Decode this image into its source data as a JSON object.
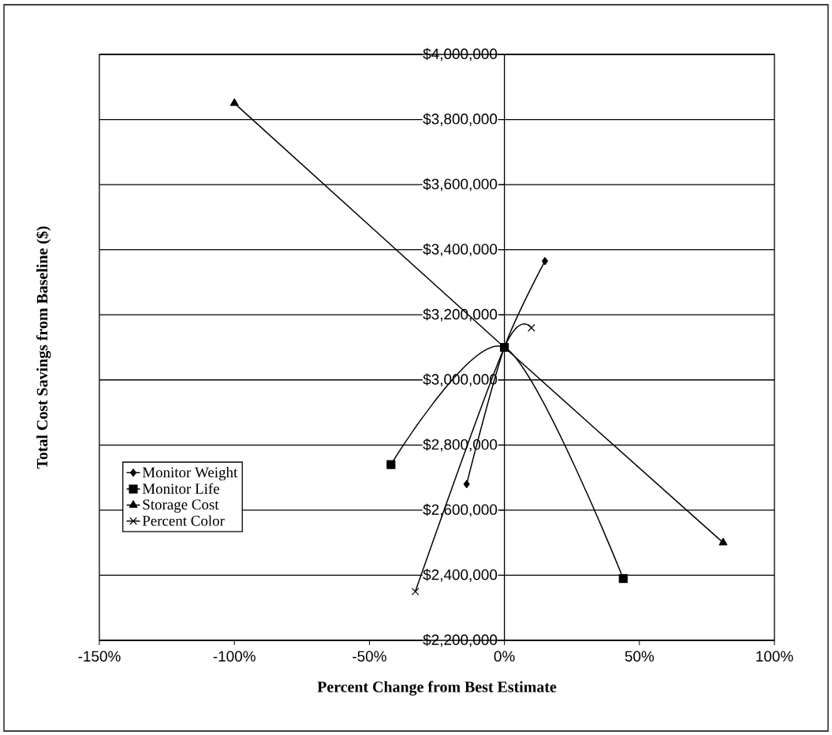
{
  "chart_data": {
    "type": "line",
    "xlabel": "Percent Change from Best Estimate",
    "ylabel": "Total Cost Savings from Baseline ($)",
    "xlim": [
      -150,
      100
    ],
    "ylim": [
      2200000,
      4000000
    ],
    "xticks": [
      {
        "value": -150,
        "label": "-150%"
      },
      {
        "value": -100,
        "label": "-100%"
      },
      {
        "value": -50,
        "label": "-50%"
      },
      {
        "value": 0,
        "label": "0%"
      },
      {
        "value": 50,
        "label": "50%"
      },
      {
        "value": 100,
        "label": "100%"
      }
    ],
    "yticks": [
      {
        "value": 2200000,
        "label": "$2,200,000"
      },
      {
        "value": 2400000,
        "label": "$2,400,000"
      },
      {
        "value": 2600000,
        "label": "$2,600,000"
      },
      {
        "value": 2800000,
        "label": "$2,800,000"
      },
      {
        "value": 3000000,
        "label": "$3,000,000"
      },
      {
        "value": 3200000,
        "label": "$3,200,000"
      },
      {
        "value": 3400000,
        "label": "$3,400,000"
      },
      {
        "value": 3600000,
        "label": "$3,600,000"
      },
      {
        "value": 3800000,
        "label": "$3,800,000"
      },
      {
        "value": 4000000,
        "label": "$4,000,000"
      }
    ],
    "grid": "y",
    "legend": "bottom left",
    "line_style": "solid",
    "series": [
      {
        "name": "Monitor Weight",
        "color": "#000000",
        "marker": "diamond",
        "x": [
          -14,
          0,
          15
        ],
        "values": [
          2680000,
          3100000,
          3365000
        ]
      },
      {
        "name": "Monitor Life",
        "color": "#000000",
        "marker": "square",
        "x": [
          -42,
          0,
          44
        ],
        "values": [
          2740000,
          3100000,
          2390000
        ]
      },
      {
        "name": "Storage Cost",
        "color": "#000000",
        "marker": "triangle",
        "x": [
          -100,
          0,
          81
        ],
        "values": [
          3850000,
          3100000,
          2500000
        ]
      },
      {
        "name": "Percent Color",
        "color": "#000000",
        "marker": "cross",
        "x": [
          -33,
          0,
          10
        ],
        "values": [
          2350000,
          3100000,
          3160000
        ]
      }
    ]
  }
}
